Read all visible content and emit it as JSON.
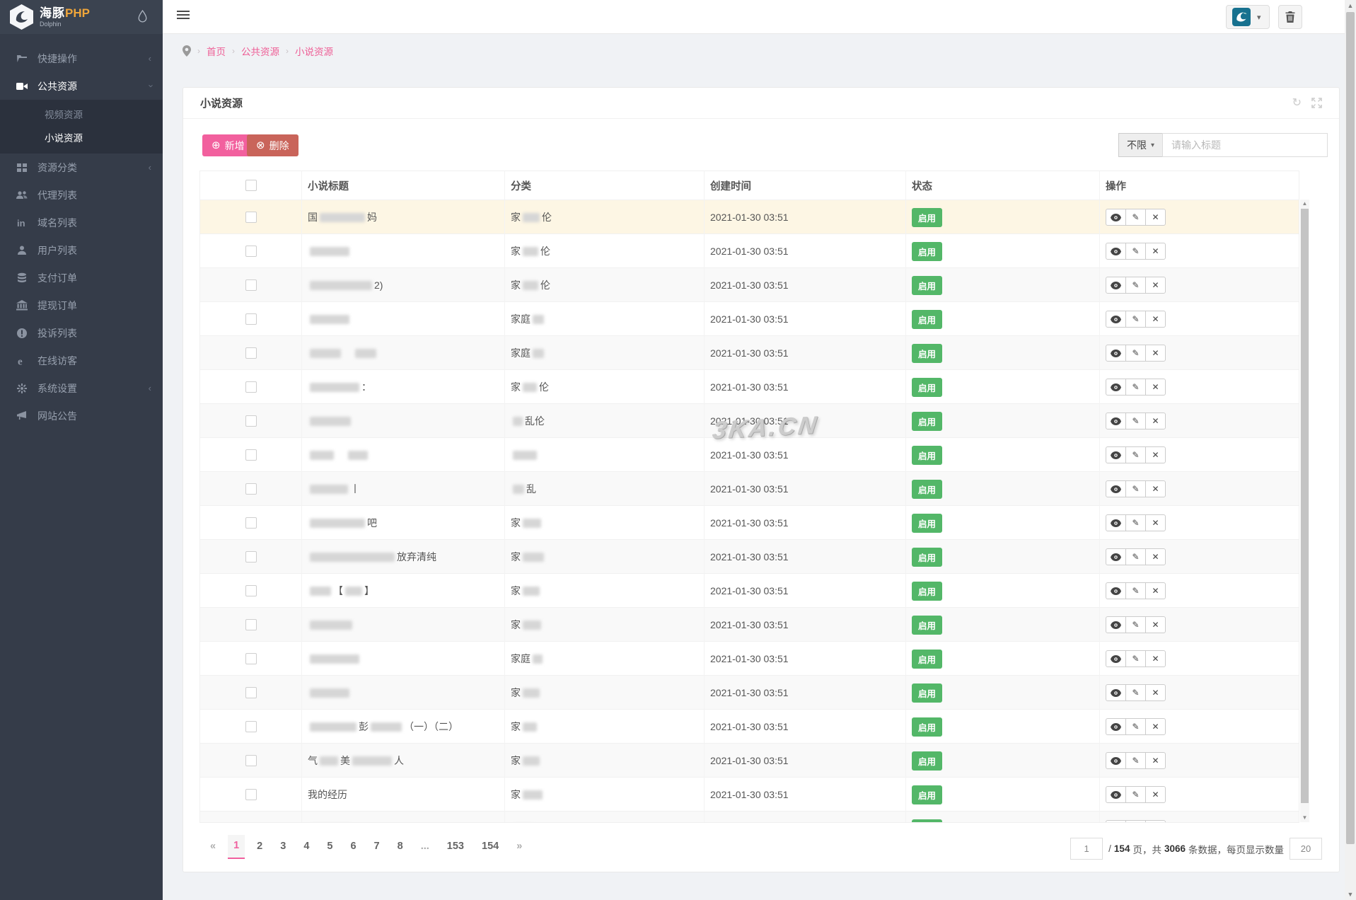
{
  "sidebar": {
    "logo": {
      "title_zh": "海豚",
      "title_accent": "PHP",
      "subtitle": "Dolphin"
    },
    "items": [
      {
        "label": "快捷操作",
        "icon": "folder-icon",
        "chevron": "left"
      },
      {
        "label": "公共资源",
        "icon": "video-icon",
        "chevron": "down",
        "active": true,
        "children": [
          {
            "label": "视频资源",
            "active": false
          },
          {
            "label": "小说资源",
            "active": true
          }
        ]
      },
      {
        "label": "资源分类",
        "icon": "grid-icon",
        "chevron": "left"
      },
      {
        "label": "代理列表",
        "icon": "users-icon"
      },
      {
        "label": "域名列表",
        "icon": "linkedin-icon"
      },
      {
        "label": "用户列表",
        "icon": "user-icon"
      },
      {
        "label": "支付订单",
        "icon": "database-icon"
      },
      {
        "label": "提现订单",
        "icon": "bank-icon"
      },
      {
        "label": "投诉列表",
        "icon": "alert-icon"
      },
      {
        "label": "在线访客",
        "icon": "browser-icon"
      },
      {
        "label": "系统设置",
        "icon": "gear-icon",
        "chevron": "left"
      },
      {
        "label": "网站公告",
        "icon": "megaphone-icon"
      }
    ]
  },
  "breadcrumb": {
    "items": [
      "首页",
      "公共资源",
      "小说资源"
    ]
  },
  "panel": {
    "title": "小说资源",
    "toolbar": {
      "add_label": "新增",
      "delete_label": "删除",
      "filter_label": "不限",
      "search_placeholder": "请输入标题"
    },
    "table": {
      "columns": [
        "小说标题",
        "分类",
        "创建时间",
        "状态",
        "操作"
      ],
      "status_label": "启用",
      "created_at": "2021-01-30 03:51",
      "rows": [
        {
          "highlight": true,
          "title": [
            {
              "t": "国"
            },
            {
              "b": 64
            },
            {
              "t": "妈"
            }
          ],
          "cat": [
            {
              "t": "家"
            },
            {
              "b": 24
            },
            {
              "t": "伦"
            }
          ]
        },
        {
          "title": [
            {
              "b": 56
            }
          ],
          "cat": [
            {
              "t": "家"
            },
            {
              "b": 22
            },
            {
              "t": "伦"
            }
          ]
        },
        {
          "title": [
            {
              "b": 88
            },
            {
              "t": "2)"
            }
          ],
          "cat": [
            {
              "t": "家"
            },
            {
              "b": 22
            },
            {
              "t": "伦"
            }
          ]
        },
        {
          "title": [
            {
              "b": 56
            }
          ],
          "cat": [
            {
              "t": "家庭"
            },
            {
              "b": 16
            }
          ]
        },
        {
          "title": [
            {
              "b": 44
            },
            {
              "t": "　"
            },
            {
              "b": 30
            }
          ],
          "cat": [
            {
              "t": "家庭"
            },
            {
              "b": 16
            }
          ]
        },
        {
          "title": [
            {
              "b": 70
            },
            {
              "t": "："
            }
          ],
          "cat": [
            {
              "t": "家"
            },
            {
              "b": 20
            },
            {
              "t": "伦"
            }
          ]
        },
        {
          "title": [
            {
              "b": 58
            }
          ],
          "cat": [
            {
              "b": 14
            },
            {
              "t": "乱伦"
            }
          ]
        },
        {
          "title": [
            {
              "b": 34
            },
            {
              "t": "　"
            },
            {
              "b": 28
            }
          ],
          "cat": [
            {
              "b": 34
            }
          ]
        },
        {
          "title": [
            {
              "b": 54
            },
            {
              "t": "丨"
            }
          ],
          "cat": [
            {
              "b": 16
            },
            {
              "t": "乱"
            }
          ]
        },
        {
          "title": [
            {
              "b": 78
            },
            {
              "t": "吧"
            }
          ],
          "cat": [
            {
              "t": "家"
            },
            {
              "b": 26
            }
          ]
        },
        {
          "title": [
            {
              "b": 120
            },
            {
              "t": "放弃清纯"
            }
          ],
          "cat": [
            {
              "t": "家"
            },
            {
              "b": 30
            }
          ]
        },
        {
          "title": [
            {
              "b": 30
            },
            {
              "t": "【"
            },
            {
              "b": 24
            },
            {
              "t": "】"
            }
          ],
          "cat": [
            {
              "t": "家"
            },
            {
              "b": 24
            }
          ]
        },
        {
          "title": [
            {
              "b": 60
            }
          ],
          "cat": [
            {
              "t": "家"
            },
            {
              "b": 26
            }
          ]
        },
        {
          "title": [
            {
              "b": 70
            }
          ],
          "cat": [
            {
              "t": "家庭"
            },
            {
              "b": 14
            }
          ]
        },
        {
          "title": [
            {
              "b": 56
            }
          ],
          "cat": [
            {
              "t": "家"
            },
            {
              "b": 24
            }
          ]
        },
        {
          "title": [
            {
              "b": 66
            },
            {
              "t": "彭"
            },
            {
              "b": 44
            },
            {
              "t": "（一）（二）"
            }
          ],
          "cat": [
            {
              "t": "家"
            },
            {
              "b": 20
            }
          ]
        },
        {
          "title": [
            {
              "t": "气"
            },
            {
              "b": 26
            },
            {
              "t": "美"
            },
            {
              "b": 56
            },
            {
              "t": "人"
            }
          ],
          "cat": [
            {
              "t": "家"
            },
            {
              "b": 24
            }
          ]
        },
        {
          "title": [
            {
              "t": "我的经历"
            }
          ],
          "cat": [
            {
              "t": "家"
            },
            {
              "b": 28
            }
          ]
        },
        {
          "title": [
            {
              "b": 60
            }
          ],
          "cat": [
            {
              "b": 30
            }
          ]
        }
      ]
    },
    "pagination": {
      "items": [
        "«",
        "1",
        "2",
        "3",
        "4",
        "5",
        "6",
        "7",
        "8",
        "...",
        "153",
        "154",
        "»"
      ],
      "active": "1"
    },
    "footer": {
      "page_value": "1",
      "slash": "/",
      "total_pages": "154",
      "seg1": "页，共",
      "total_records": "3066",
      "seg2": "条数据，每页显示数量",
      "per_page_value": "20"
    }
  },
  "watermark": "3KA.CN",
  "colors": {
    "accent_pink": "#f2609e",
    "danger_red": "#c9645a",
    "status_green": "#53b768",
    "sidebar_bg": "#353c49",
    "highlight_row": "#fdf6e4"
  }
}
